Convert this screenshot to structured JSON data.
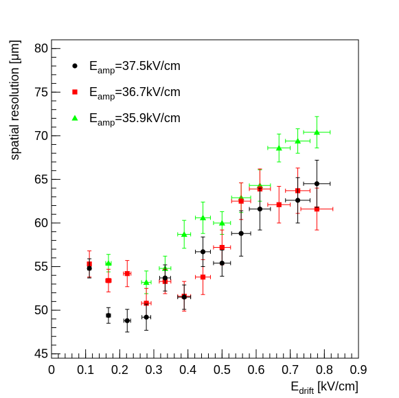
{
  "chart_data": {
    "type": "scatter",
    "xlabel": "E_drift [kV/cm]",
    "xlabel_main": "E",
    "xlabel_sub": "drift",
    "xlabel_unit": " [kV/cm]",
    "ylabel": "spatial resolution [μm]",
    "xlim": [
      0,
      0.9
    ],
    "ylim": [
      44.5,
      81
    ],
    "x_ticks": [
      "0",
      "0.1",
      "0.2",
      "0.3",
      "0.4",
      "0.5",
      "0.6",
      "0.7",
      "0.8",
      "0.9"
    ],
    "y_ticks": [
      "45",
      "50",
      "55",
      "60",
      "65",
      "70",
      "75",
      "80"
    ],
    "legend_position": "top-left",
    "series": [
      {
        "name": "E_amp=37.5kV/cm",
        "legend_main": "E",
        "legend_sub": "amp",
        "legend_rest": "=37.5kV/cm",
        "color": "#000000",
        "marker": "circle",
        "points": [
          {
            "x": 0.111,
            "y": 54.8,
            "xerr": 0.005,
            "yerr": 1.1
          },
          {
            "x": 0.167,
            "y": 49.4,
            "xerr": 0.006,
            "yerr": 0.9
          },
          {
            "x": 0.222,
            "y": 48.8,
            "xerr": 0.01,
            "yerr": 1.3
          },
          {
            "x": 0.278,
            "y": 49.2,
            "xerr": 0.013,
            "yerr": 1.5
          },
          {
            "x": 0.333,
            "y": 53.7,
            "xerr": 0.016,
            "yerr": 1.5
          },
          {
            "x": 0.389,
            "y": 51.5,
            "xerr": 0.019,
            "yerr": 1.4
          },
          {
            "x": 0.444,
            "y": 56.7,
            "xerr": 0.022,
            "yerr": 1.7
          },
          {
            "x": 0.5,
            "y": 55.4,
            "xerr": 0.025,
            "yerr": 1.5
          },
          {
            "x": 0.556,
            "y": 58.8,
            "xerr": 0.028,
            "yerr": 2.6
          },
          {
            "x": 0.611,
            "y": 61.6,
            "xerr": 0.031,
            "yerr": 2.4
          },
          {
            "x": 0.722,
            "y": 62.6,
            "xerr": 0.036,
            "yerr": 2.6
          },
          {
            "x": 0.778,
            "y": 64.5,
            "xerr": 0.039,
            "yerr": 2.7
          }
        ]
      },
      {
        "name": "E_amp=36.7kV/cm",
        "legend_main": "E",
        "legend_sub": "amp",
        "legend_rest": "=36.7kV/cm",
        "color": "#ff0000",
        "marker": "square",
        "points": [
          {
            "x": 0.111,
            "y": 55.3,
            "xerr": 0.005,
            "yerr": 1.5
          },
          {
            "x": 0.167,
            "y": 53.4,
            "xerr": 0.008,
            "yerr": 1.3
          },
          {
            "x": 0.222,
            "y": 54.2,
            "xerr": 0.011,
            "yerr": 1.5
          },
          {
            "x": 0.278,
            "y": 50.8,
            "xerr": 0.014,
            "yerr": 1.7
          },
          {
            "x": 0.333,
            "y": 53.3,
            "xerr": 0.017,
            "yerr": 1.4
          },
          {
            "x": 0.389,
            "y": 51.6,
            "xerr": 0.019,
            "yerr": 1.7
          },
          {
            "x": 0.444,
            "y": 53.8,
            "xerr": 0.022,
            "yerr": 2.0
          },
          {
            "x": 0.5,
            "y": 57.2,
            "xerr": 0.025,
            "yerr": 2.0
          },
          {
            "x": 0.556,
            "y": 62.5,
            "xerr": 0.028,
            "yerr": 2.1
          },
          {
            "x": 0.611,
            "y": 63.9,
            "xerr": 0.031,
            "yerr": 2.3
          },
          {
            "x": 0.667,
            "y": 62.1,
            "xerr": 0.033,
            "yerr": 2.1
          },
          {
            "x": 0.722,
            "y": 63.7,
            "xerr": 0.036,
            "yerr": 2.6
          },
          {
            "x": 0.778,
            "y": 61.6,
            "xerr": 0.047,
            "yerr": 2.4
          }
        ]
      },
      {
        "name": "E_amp=35.9kV/cm",
        "legend_main": "E",
        "legend_sub": "amp",
        "legend_rest": "=35.9kV/cm",
        "color": "#00ff00",
        "marker": "triangle",
        "points": [
          {
            "x": 0.167,
            "y": 55.4,
            "xerr": 0.008,
            "yerr": 1.0
          },
          {
            "x": 0.278,
            "y": 53.2,
            "xerr": 0.014,
            "yerr": 1.3
          },
          {
            "x": 0.333,
            "y": 54.8,
            "xerr": 0.017,
            "yerr": 1.4
          },
          {
            "x": 0.389,
            "y": 58.7,
            "xerr": 0.019,
            "yerr": 1.6
          },
          {
            "x": 0.444,
            "y": 60.6,
            "xerr": 0.022,
            "yerr": 1.8
          },
          {
            "x": 0.5,
            "y": 60.0,
            "xerr": 0.025,
            "yerr": 1.3
          },
          {
            "x": 0.556,
            "y": 62.9,
            "xerr": 0.028,
            "yerr": 1.7
          },
          {
            "x": 0.611,
            "y": 64.3,
            "xerr": 0.031,
            "yerr": 1.8
          },
          {
            "x": 0.667,
            "y": 68.6,
            "xerr": 0.033,
            "yerr": 1.6
          },
          {
            "x": 0.722,
            "y": 69.4,
            "xerr": 0.036,
            "yerr": 1.4
          },
          {
            "x": 0.778,
            "y": 70.4,
            "xerr": 0.039,
            "yerr": 1.8
          }
        ]
      }
    ]
  }
}
